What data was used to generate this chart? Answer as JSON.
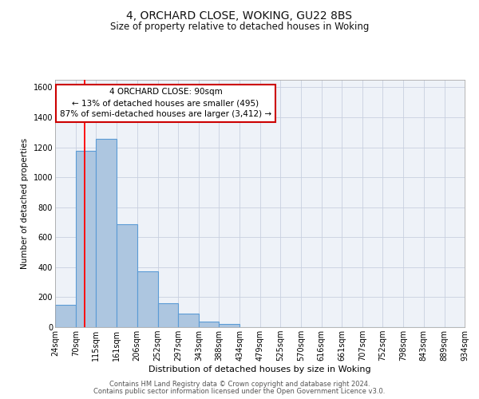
{
  "title": "4, ORCHARD CLOSE, WOKING, GU22 8BS",
  "subtitle": "Size of property relative to detached houses in Woking",
  "xlabel": "Distribution of detached houses by size in Woking",
  "ylabel": "Number of detached properties",
  "bin_labels": [
    "24sqm",
    "70sqm",
    "115sqm",
    "161sqm",
    "206sqm",
    "252sqm",
    "297sqm",
    "343sqm",
    "388sqm",
    "434sqm",
    "479sqm",
    "525sqm",
    "570sqm",
    "616sqm",
    "661sqm",
    "707sqm",
    "752sqm",
    "798sqm",
    "843sqm",
    "889sqm",
    "934sqm"
  ],
  "bar_values": [
    150,
    1175,
    1255,
    685,
    375,
    160,
    90,
    35,
    20,
    0,
    0,
    0,
    0,
    0,
    0,
    0,
    0,
    0,
    0,
    0
  ],
  "bar_color": "#adc6e0",
  "bar_edge_color": "#5b9bd5",
  "bar_edge_width": 0.8,
  "red_line_x": 90,
  "bin_edges": [
    24,
    70,
    115,
    161,
    206,
    252,
    297,
    343,
    388,
    434,
    479,
    525,
    570,
    616,
    661,
    707,
    752,
    798,
    843,
    889,
    934
  ],
  "annotation_box_text": "4 ORCHARD CLOSE: 90sqm\n← 13% of detached houses are smaller (495)\n87% of semi-detached houses are larger (3,412) →",
  "annotation_box_color": "#ffffff",
  "annotation_box_edge_color": "#cc0000",
  "ylim": [
    0,
    1650
  ],
  "yticks": [
    0,
    200,
    400,
    600,
    800,
    1000,
    1200,
    1400,
    1600
  ],
  "grid_color": "#c8d0e0",
  "background_color": "#ffffff",
  "plot_bg_color": "#eef2f8",
  "footer_line1": "Contains HM Land Registry data © Crown copyright and database right 2024.",
  "footer_line2": "Contains public sector information licensed under the Open Government Licence v3.0.",
  "title_fontsize": 10,
  "subtitle_fontsize": 8.5,
  "xlabel_fontsize": 8,
  "ylabel_fontsize": 7.5,
  "tick_fontsize": 7,
  "footer_fontsize": 6,
  "annot_fontsize": 7.5
}
